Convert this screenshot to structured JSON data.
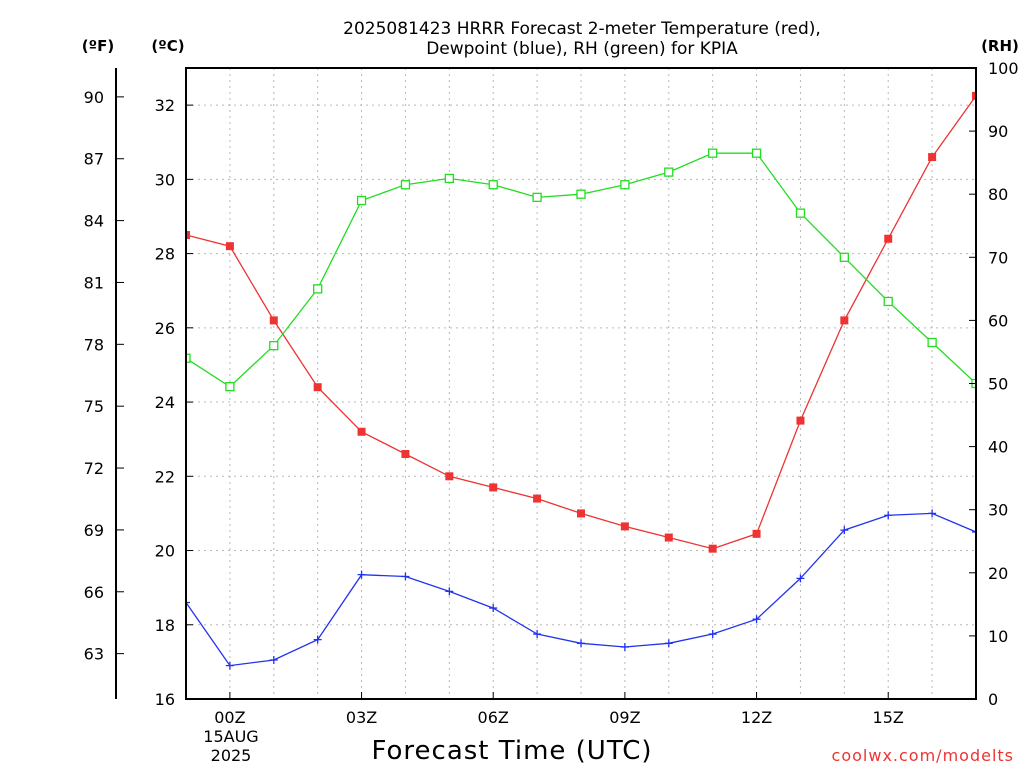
{
  "chart_data": {
    "type": "line",
    "title_lines": [
      "2025081423 HRRR Forecast 2-meter Temperature (red),",
      "Dewpoint (blue), RH (green) for KPIA"
    ],
    "xlabel": "Forecast Time (UTC)",
    "credit": "coolwx.com/modelts",
    "x_ticks": [
      {
        "x": 0,
        "label": "00Z"
      },
      {
        "x": 3,
        "label": "03Z"
      },
      {
        "x": 6,
        "label": "06Z"
      },
      {
        "x": 9,
        "label": "09Z"
      },
      {
        "x": 12,
        "label": "12Z"
      },
      {
        "x": 15,
        "label": "15Z"
      }
    ],
    "date_label": [
      "15AUG",
      "2025"
    ],
    "xlim": [
      -1,
      17
    ],
    "x": [
      -1,
      0,
      1,
      2,
      3,
      4,
      5,
      6,
      7,
      8,
      9,
      10,
      11,
      12,
      13,
      14,
      15,
      16,
      17
    ],
    "axes": {
      "fahrenheit": {
        "unit_label": "(ºF)",
        "ticks": [
          63,
          66,
          69,
          72,
          75,
          78,
          81,
          84,
          87,
          90
        ]
      },
      "celsius": {
        "unit_label": "(ºC)",
        "ylim": [
          16,
          33
        ],
        "ticks": [
          16,
          18,
          20,
          22,
          24,
          26,
          28,
          30,
          32
        ]
      },
      "rh": {
        "unit_label": "(RH)",
        "ylim": [
          0,
          100
        ],
        "ticks": [
          0,
          10,
          20,
          30,
          40,
          50,
          60,
          70,
          80,
          90,
          100
        ]
      }
    },
    "grid": true,
    "series": [
      {
        "name": "Temperature (red)",
        "axis": "celsius",
        "color": "#ee3333",
        "marker": "filled-square",
        "values": [
          28.5,
          28.2,
          26.2,
          24.4,
          23.2,
          22.6,
          22.0,
          21.7,
          21.4,
          21.0,
          20.65,
          20.35,
          20.05,
          20.45,
          23.5,
          26.2,
          28.4,
          30.6,
          32.25
        ]
      },
      {
        "name": "Dewpoint (blue)",
        "axis": "celsius",
        "color": "#2233ee",
        "marker": "plus",
        "values": [
          18.6,
          16.9,
          17.05,
          17.6,
          19.35,
          19.3,
          18.9,
          18.45,
          17.75,
          17.5,
          17.4,
          17.5,
          17.75,
          18.15,
          19.25,
          20.55,
          20.95,
          21.0,
          20.5
        ]
      },
      {
        "name": "RH (green)",
        "axis": "rh",
        "color": "#22dd22",
        "marker": "open-square",
        "values": [
          54,
          49.5,
          56,
          65,
          79,
          81.5,
          82.5,
          81.5,
          79.5,
          80,
          81.5,
          83.5,
          86.5,
          86.5,
          77,
          70,
          63,
          56.5,
          50
        ]
      }
    ]
  }
}
